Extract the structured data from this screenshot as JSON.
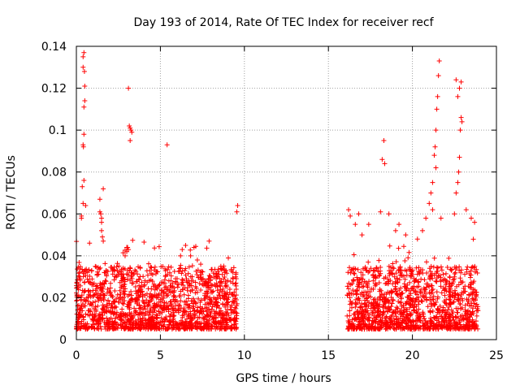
{
  "chart_data": {
    "type": "scatter",
    "title": "Day 193 of 2014, Rate Of TEC Index for receiver recf",
    "xlabel": "GPS time / hours",
    "ylabel": "ROTI / TECUs",
    "xlim": [
      0,
      25
    ],
    "ylim": [
      0,
      0.14
    ],
    "xticks": [
      0,
      5,
      10,
      15,
      20,
      25
    ],
    "yticks": [
      0,
      0.02,
      0.04,
      0.06,
      0.08,
      0.1,
      0.12,
      0.14
    ],
    "xtick_labels": [
      "0",
      "5",
      "10",
      "15",
      "20",
      "25"
    ],
    "ytick_labels": [
      "0",
      "0.02",
      "0.04",
      "0.06",
      "0.08",
      "0.1",
      "0.12",
      "0.14"
    ],
    "grid": true,
    "legend": "none",
    "marker": "+",
    "color": "#ff0000",
    "series": [
      {
        "name": "ROTI",
        "note": "Dense scatter estimated from the plot; main clusters listed plus a generated background cloud in the two observation windows.",
        "x": [
          0.3,
          0.35,
          0.4,
          0.42,
          0.45,
          0.45,
          0.5,
          0.5,
          0.48,
          0.4,
          0.4,
          0.45,
          0.55,
          0.3,
          0.45,
          0.4,
          1.4,
          1.45,
          1.5,
          1.6,
          1.5,
          1.55,
          1.6,
          1.4,
          1.5,
          3.0,
          3.1,
          3.15,
          3.2,
          3.25,
          3.3,
          3.2,
          3.0,
          3.05,
          3.1,
          2.9,
          5.4,
          6.2,
          6.3,
          6.5,
          6.8,
          7.0,
          7.2,
          7.4,
          7.9,
          8.6,
          8.8,
          9.6,
          9.55,
          16.2,
          16.3,
          16.6,
          16.8,
          17.0,
          17.4,
          18.1,
          18.2,
          18.3,
          18.35,
          18.6,
          19.0,
          19.2,
          19.6,
          20.3,
          20.6,
          20.8,
          21.0,
          21.1,
          21.2,
          21.3,
          21.35,
          21.4,
          21.45,
          21.5,
          21.55,
          21.6,
          21.4,
          21.2,
          21.7,
          22.5,
          22.6,
          22.7,
          22.75,
          22.8,
          22.85,
          22.9,
          22.95,
          22.7,
          22.8,
          22.9,
          22.6,
          23.2,
          23.5,
          23.7
        ],
        "y": [
          0.059,
          0.073,
          0.093,
          0.092,
          0.098,
          0.111,
          0.114,
          0.121,
          0.128,
          0.13,
          0.135,
          0.137,
          0.064,
          0.058,
          0.076,
          0.065,
          0.067,
          0.06,
          0.058,
          0.072,
          0.052,
          0.049,
          0.047,
          0.061,
          0.056,
          0.044,
          0.12,
          0.102,
          0.101,
          0.1,
          0.099,
          0.095,
          0.042,
          0.044,
          0.043,
          0.04,
          0.093,
          0.04,
          0.043,
          0.045,
          0.04,
          0.044,
          0.038,
          0.036,
          0.047,
          0.035,
          0.033,
          0.064,
          0.061,
          0.062,
          0.059,
          0.055,
          0.06,
          0.05,
          0.055,
          0.061,
          0.086,
          0.095,
          0.084,
          0.06,
          0.052,
          0.055,
          0.05,
          0.048,
          0.052,
          0.058,
          0.065,
          0.07,
          0.075,
          0.088,
          0.092,
          0.1,
          0.11,
          0.116,
          0.126,
          0.133,
          0.082,
          0.062,
          0.058,
          0.06,
          0.07,
          0.075,
          0.08,
          0.087,
          0.1,
          0.106,
          0.104,
          0.116,
          0.12,
          0.123,
          0.124,
          0.062,
          0.058,
          0.056
        ],
        "background_windows_hours": [
          [
            0.0,
            9.6
          ],
          [
            16.1,
            23.9
          ]
        ],
        "background_range": [
          0.005,
          0.035
        ]
      }
    ]
  }
}
